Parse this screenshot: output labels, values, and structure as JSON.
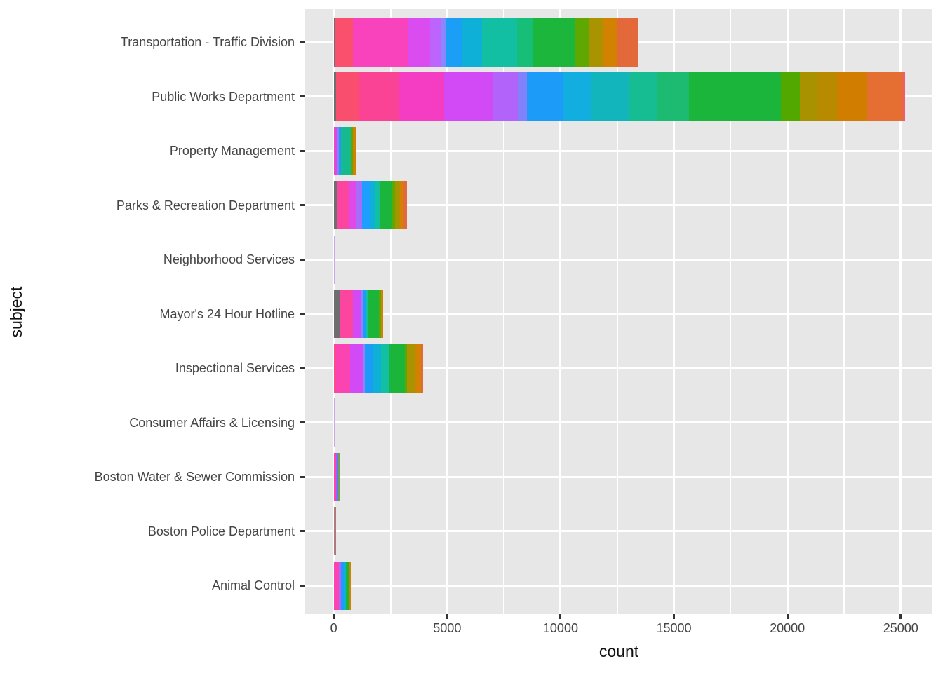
{
  "chart_data": {
    "type": "bar",
    "orientation": "horizontal",
    "stacked": true,
    "title": "",
    "xlabel": "count",
    "ylabel": "subject",
    "xlim": [
      0,
      26500
    ],
    "x_major_ticks": [
      0,
      5000,
      10000,
      15000,
      20000,
      25000
    ],
    "x_major_tick_labels": [
      "0",
      "5000",
      "10000",
      "15000",
      "20000",
      "25000"
    ],
    "x_minor_ticks": [
      2500,
      7500,
      12500,
      17500,
      22500
    ],
    "grid": "white major+minor vertical, white major horizontal at category centers, on gray panel",
    "legend": "none",
    "categories": [
      {
        "label": "Transportation - Traffic Division",
        "total": 13400,
        "segments": [
          {
            "color": "#6E6E6E",
            "frac": 0.005
          },
          {
            "color": "#FA506E",
            "frac": 0.058
          },
          {
            "color": "#F843BC",
            "frac": 0.18
          },
          {
            "color": "#DA4BF0",
            "frac": 0.073
          },
          {
            "color": "#BC64FB",
            "frac": 0.035
          },
          {
            "color": "#8A86FD",
            "frac": 0.018
          },
          {
            "color": "#1B9EF5",
            "frac": 0.052
          },
          {
            "color": "#0FB0D8",
            "frac": 0.066
          },
          {
            "color": "#13BFA2",
            "frac": 0.116
          },
          {
            "color": "#17BE77",
            "frac": 0.05
          },
          {
            "color": "#1CB63C",
            "frac": 0.139
          },
          {
            "color": "#5FA801",
            "frac": 0.05
          },
          {
            "color": "#A99300",
            "frac": 0.042
          },
          {
            "color": "#D28200",
            "frac": 0.046
          },
          {
            "color": "#E3683A",
            "frac": 0.07
          }
        ]
      },
      {
        "label": "Public Works Department",
        "total": 25200,
        "segments": [
          {
            "color": "#6E6E6E",
            "frac": 0.004
          },
          {
            "color": "#FA4E6E",
            "frac": 0.041
          },
          {
            "color": "#FB4396",
            "frac": 0.068
          },
          {
            "color": "#F43DC3",
            "frac": 0.08
          },
          {
            "color": "#D24AF5",
            "frac": 0.086
          },
          {
            "color": "#B163FA",
            "frac": 0.043
          },
          {
            "color": "#8181FB",
            "frac": 0.016
          },
          {
            "color": "#1C9BF8",
            "frac": 0.062
          },
          {
            "color": "#12AEE0",
            "frac": 0.051
          },
          {
            "color": "#12B5BB",
            "frac": 0.066
          },
          {
            "color": "#16BD92",
            "frac": 0.049
          },
          {
            "color": "#1DBB72",
            "frac": 0.055
          },
          {
            "color": "#1CB53B",
            "frac": 0.162
          },
          {
            "color": "#53A800",
            "frac": 0.033
          },
          {
            "color": "#A89200",
            "frac": 0.029
          },
          {
            "color": "#B88A00",
            "frac": 0.035
          },
          {
            "color": "#D17E00",
            "frac": 0.053
          },
          {
            "color": "#E56E32",
            "frac": 0.063
          },
          {
            "color": "#F25B6E",
            "frac": 0.004
          }
        ]
      },
      {
        "label": "Property Management",
        "total": 1000,
        "segments": [
          {
            "color": "#FB47A0",
            "frac": 0.085
          },
          {
            "color": "#D24AF5",
            "frac": 0.063
          },
          {
            "color": "#9878FB",
            "frac": 0.063
          },
          {
            "color": "#1C9BF8",
            "frac": 0.104
          },
          {
            "color": "#16BA8E",
            "frac": 0.44
          },
          {
            "color": "#5FA801",
            "frac": 0.085
          },
          {
            "color": "#D28200",
            "frac": 0.16
          }
        ]
      },
      {
        "label": "Parks & Recreation Department",
        "total": 3230,
        "segments": [
          {
            "color": "#6E6E6E",
            "frac": 0.048
          },
          {
            "color": "#FB459E",
            "frac": 0.152
          },
          {
            "color": "#E148E8",
            "frac": 0.113
          },
          {
            "color": "#A86CFB",
            "frac": 0.075
          },
          {
            "color": "#1E9EFF",
            "frac": 0.103
          },
          {
            "color": "#0FB0D8",
            "frac": 0.081
          },
          {
            "color": "#13BFA2",
            "frac": 0.065
          },
          {
            "color": "#1CB53B",
            "frac": 0.154
          },
          {
            "color": "#5FA801",
            "frac": 0.048
          },
          {
            "color": "#A99300",
            "frac": 0.065
          },
          {
            "color": "#D28200",
            "frac": 0.048
          },
          {
            "color": "#E3683A",
            "frac": 0.048
          }
        ]
      },
      {
        "label": "Neighborhood Services",
        "total": 30,
        "segments": [
          {
            "color": "#C9A8E8",
            "frac": 1.0
          }
        ]
      },
      {
        "label": "Mayor's 24 Hour Hotline",
        "total": 2180,
        "segments": [
          {
            "color": "#6E6E6E",
            "frac": 0.13
          },
          {
            "color": "#FB459E",
            "frac": 0.251
          },
          {
            "color": "#D24AF5",
            "frac": 0.17
          },
          {
            "color": "#8A86FD",
            "frac": 0.033
          },
          {
            "color": "#1C9BF8",
            "frac": 0.064
          },
          {
            "color": "#13BFA2",
            "frac": 0.048
          },
          {
            "color": "#1CB53B",
            "frac": 0.217
          },
          {
            "color": "#5FA801",
            "frac": 0.039
          },
          {
            "color": "#D28200",
            "frac": 0.048
          }
        ]
      },
      {
        "label": "Inspectional Services",
        "total": 3930,
        "segments": [
          {
            "color": "#FA506E",
            "frac": 0.01
          },
          {
            "color": "#FB43B1",
            "frac": 0.175
          },
          {
            "color": "#D24AF5",
            "frac": 0.145
          },
          {
            "color": "#8A86FD",
            "frac": 0.019
          },
          {
            "color": "#1C9BF8",
            "frac": 0.087
          },
          {
            "color": "#0FB0D8",
            "frac": 0.092
          },
          {
            "color": "#13BFA2",
            "frac": 0.093
          },
          {
            "color": "#1CB53B",
            "frac": 0.173
          },
          {
            "color": "#5FA801",
            "frac": 0.026
          },
          {
            "color": "#A99300",
            "frac": 0.093
          },
          {
            "color": "#D28200",
            "frac": 0.066
          },
          {
            "color": "#E3683A",
            "frac": 0.021
          }
        ]
      },
      {
        "label": "Consumer Affairs & Licensing",
        "total": 15,
        "segments": [
          {
            "color": "#C9A8E8",
            "frac": 1.0
          }
        ]
      },
      {
        "label": "Boston Water & Sewer Commission",
        "total": 280,
        "segments": [
          {
            "color": "#FB43B1",
            "frac": 0.35
          },
          {
            "color": "#D24AF5",
            "frac": 0.08
          },
          {
            "color": "#1C9BF8",
            "frac": 0.23
          },
          {
            "color": "#13BFA2",
            "frac": 0.12
          },
          {
            "color": "#D28200",
            "frac": 0.22
          }
        ]
      },
      {
        "label": "Boston Police Department",
        "total": 110,
        "segments": [
          {
            "color": "#B163FA",
            "frac": 0.4
          },
          {
            "color": "#6E6E6E",
            "frac": 0.2
          },
          {
            "color": "#A99300",
            "frac": 0.4
          }
        ]
      },
      {
        "label": "Animal Control",
        "total": 760,
        "segments": [
          {
            "color": "#FB43B1",
            "frac": 0.28
          },
          {
            "color": "#B163FA",
            "frac": 0.14
          },
          {
            "color": "#1C9BF8",
            "frac": 0.17
          },
          {
            "color": "#0FB0D8",
            "frac": 0.11
          },
          {
            "color": "#1CB53B",
            "frac": 0.19
          },
          {
            "color": "#D28200",
            "frac": 0.11
          }
        ]
      }
    ]
  },
  "colors": {
    "panel_background": "#E7E7E7",
    "gridline": "#FFFFFF",
    "tick_mark": "#333333",
    "axis_text": "#444444",
    "axis_title": "#111111",
    "na_fill": "#6E6E6E"
  }
}
